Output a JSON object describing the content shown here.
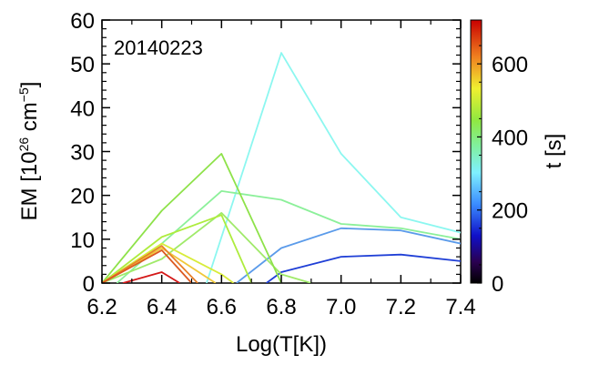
{
  "chart_data": {
    "type": "line",
    "annotation": "20140223",
    "xlabel": "Log(T[K])",
    "ylabel_main": "EM [10",
    "ylabel_exp1": "26",
    "ylabel_unit": " cm",
    "ylabel_exp2": "−5",
    "ylabel_close": "]",
    "xlim": [
      6.2,
      7.4
    ],
    "ylim": [
      0,
      60
    ],
    "xticks": [
      "6.2",
      "6.4",
      "6.6",
      "6.8",
      "7.0",
      "7.2",
      "7.4"
    ],
    "yticks": [
      "0",
      "10",
      "20",
      "30",
      "40",
      "50",
      "60"
    ],
    "colorbar": {
      "label": "t [s]",
      "range": [
        0,
        720
      ],
      "ticks": [
        "0",
        "200",
        "400",
        "600"
      ],
      "colormap": "rainbow"
    },
    "series": [
      {
        "t": 150,
        "color": "#1f3fd6",
        "x": [
          6.75,
          6.8,
          7.0,
          7.2,
          7.4
        ],
        "y": [
          0,
          2.5,
          6.0,
          6.5,
          5.0
        ]
      },
      {
        "t": 240,
        "color": "#5b9bea",
        "x": [
          6.65,
          6.8,
          7.0,
          7.2,
          7.4
        ],
        "y": [
          0,
          8.0,
          12.5,
          12.0,
          9.0
        ]
      },
      {
        "t": 320,
        "color": "#8cf7f0",
        "x": [
          6.55,
          6.8,
          7.0,
          7.2,
          7.4
        ],
        "y": [
          0,
          52.5,
          29.5,
          15.0,
          11.5
        ]
      },
      {
        "t": 360,
        "color": "#8cf09a",
        "x": [
          6.25,
          6.6,
          6.8,
          7.0,
          7.2,
          7.4
        ],
        "y": [
          0,
          21.0,
          19.0,
          13.5,
          12.5,
          10.0
        ]
      },
      {
        "t": 380,
        "color": "#a0ea6a",
        "x": [
          6.2,
          6.4,
          6.6,
          6.8,
          6.9
        ],
        "y": [
          0,
          5.5,
          16.0,
          2.0,
          0
        ]
      },
      {
        "t": 400,
        "color": "#8ee24a",
        "x": [
          6.2,
          6.4,
          6.6,
          6.8
        ],
        "y": [
          0,
          16.5,
          29.5,
          0
        ]
      },
      {
        "t": 410,
        "color": "#aeec3e",
        "x": [
          6.2,
          6.4,
          6.6,
          6.7
        ],
        "y": [
          0,
          10.5,
          15.5,
          0
        ]
      },
      {
        "t": 450,
        "color": "#d8ec3a",
        "x": [
          6.2,
          6.4,
          6.6,
          6.64
        ],
        "y": [
          0,
          9.0,
          2.0,
          0
        ]
      },
      {
        "t": 560,
        "color": "#f0c83a",
        "x": [
          6.2,
          6.4,
          6.58
        ],
        "y": [
          0,
          8.0,
          0
        ]
      },
      {
        "t": 610,
        "color": "#e8802a",
        "x": [
          6.2,
          6.4,
          6.52
        ],
        "y": [
          0,
          8.5,
          0
        ]
      },
      {
        "t": 640,
        "color": "#dc5a22",
        "x": [
          6.2,
          6.4,
          6.5
        ],
        "y": [
          0,
          7.5,
          0
        ]
      },
      {
        "t": 700,
        "color": "#d41818",
        "x": [
          6.27,
          6.4,
          6.46
        ],
        "y": [
          0,
          2.5,
          0
        ]
      }
    ]
  }
}
